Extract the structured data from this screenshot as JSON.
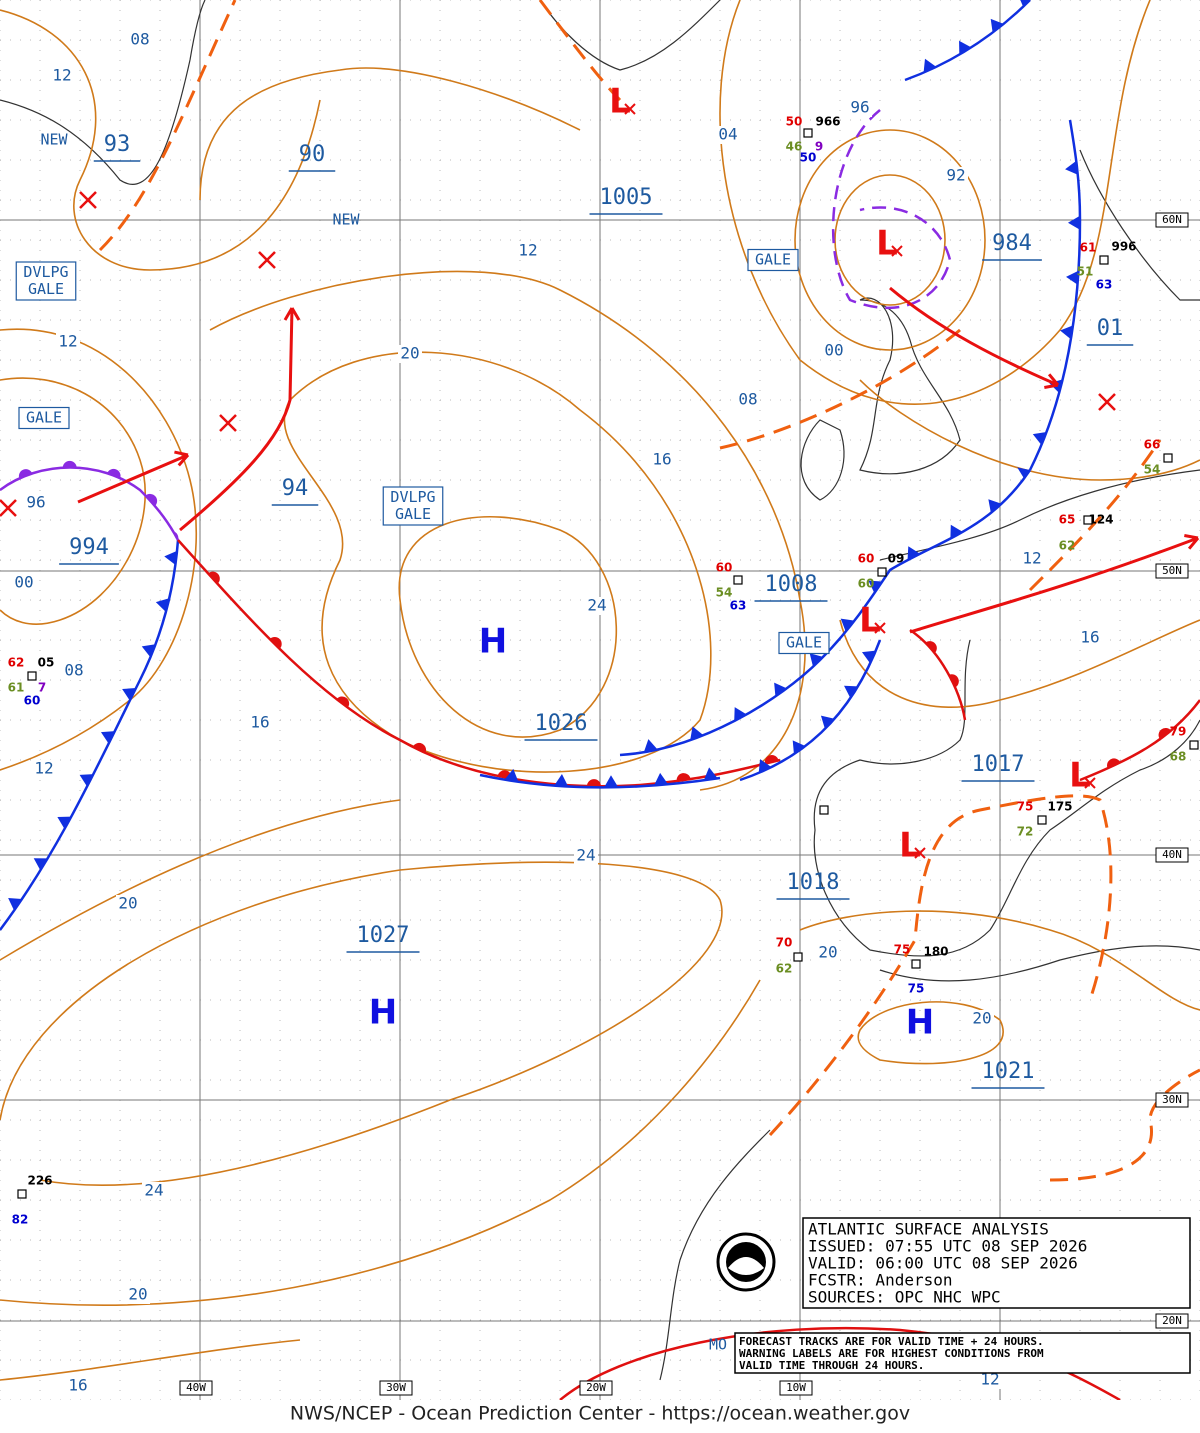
{
  "info": {
    "title": "ATLANTIC SURFACE ANALYSIS",
    "issued": "ISSUED:  07:55 UTC 08 SEP 2026",
    "valid": "VALID:   06:00 UTC 08 SEP 2026",
    "forecaster": "FCSTR:   Anderson",
    "sources": "SOURCES: OPC NHC WPC"
  },
  "note": [
    "FORECAST TRACKS ARE FOR VALID TIME + 24 HOURS.",
    "WARNING LABELS ARE FOR HIGHEST CONDITIONS FROM",
    "VALID TIME THROUGH 24 HOURS."
  ],
  "footer": "NWS/NCEP - Ocean Prediction Center - https://ocean.weather.gov",
  "latlon_labels": [
    "60N",
    "50N",
    "40N",
    "30N",
    "20N",
    "40W",
    "30W",
    "20W",
    "10W"
  ],
  "isobar_labels": [
    "08",
    "12",
    "12",
    "20",
    "12",
    "96",
    "92",
    "04",
    "00",
    "08",
    "16",
    "96",
    "00",
    "08",
    "24",
    "12",
    "16",
    "16",
    "12",
    "24",
    "20",
    "20",
    "20",
    "24",
    "20",
    "16",
    "12"
  ],
  "pressure_labels": [
    "93",
    "90",
    "1005",
    "984",
    "01",
    "994",
    "94",
    "1008",
    "1026",
    "1017",
    "1027",
    "1018",
    "1021"
  ],
  "highs": [
    "H",
    "H",
    "H"
  ],
  "lows": [
    "L",
    "L",
    "L",
    "L",
    "L"
  ],
  "warnings": [
    [
      "NEW"
    ],
    [
      "NEW"
    ],
    [
      "DVLPG",
      "GALE"
    ],
    [
      "GALE"
    ],
    [
      "GALE"
    ],
    [
      "DVLPG",
      "GALE"
    ],
    [
      "GALE"
    ],
    [
      "MO"
    ]
  ],
  "stations": [
    {
      "text": "50",
      "color": "#e00000"
    },
    {
      "text": "966",
      "color": "#000000"
    },
    {
      "text": "46",
      "color": "#6b8e23"
    },
    {
      "text": "9",
      "color": "#8000c0"
    },
    {
      "text": "50",
      "color": "#0000d0"
    },
    {
      "text": "61",
      "color": "#e00000"
    },
    {
      "text": "996",
      "color": "#000000"
    },
    {
      "text": "51",
      "color": "#6b8e23"
    },
    {
      "text": "63",
      "color": "#0000d0"
    },
    {
      "text": "66",
      "color": "#e00000"
    },
    {
      "text": "54",
      "color": "#6b8e23"
    },
    {
      "text": "65",
      "color": "#e00000"
    },
    {
      "text": "124",
      "color": "#000000"
    },
    {
      "text": "62",
      "color": "#6b8e23"
    },
    {
      "text": "60",
      "color": "#e00000"
    },
    {
      "text": "09",
      "color": "#000000"
    },
    {
      "text": "60",
      "color": "#6b8e23"
    },
    {
      "text": "60",
      "color": "#e00000"
    },
    {
      "text": "54",
      "color": "#6b8e23"
    },
    {
      "text": "63",
      "color": "#0000d0"
    },
    {
      "text": "62",
      "color": "#e00000"
    },
    {
      "text": "05",
      "color": "#000000"
    },
    {
      "text": "61",
      "color": "#6b8e23"
    },
    {
      "text": "7",
      "color": "#8000c0"
    },
    {
      "text": "60",
      "color": "#0000d0"
    },
    {
      "text": "75",
      "color": "#e00000"
    },
    {
      "text": "175",
      "color": "#000000"
    },
    {
      "text": "72",
      "color": "#6b8e23"
    },
    {
      "text": "70",
      "color": "#e00000"
    },
    {
      "text": "62",
      "color": "#6b8e23"
    },
    {
      "text": "75",
      "color": "#e00000"
    },
    {
      "text": "180",
      "color": "#000000"
    },
    {
      "text": "75",
      "color": "#0000d0"
    },
    {
      "text": "226",
      "color": "#000000"
    },
    {
      "text": "82",
      "color": "#0000d0"
    },
    {
      "text": "79",
      "color": "#e00000"
    },
    {
      "text": "68",
      "color": "#6b8e23"
    }
  ]
}
